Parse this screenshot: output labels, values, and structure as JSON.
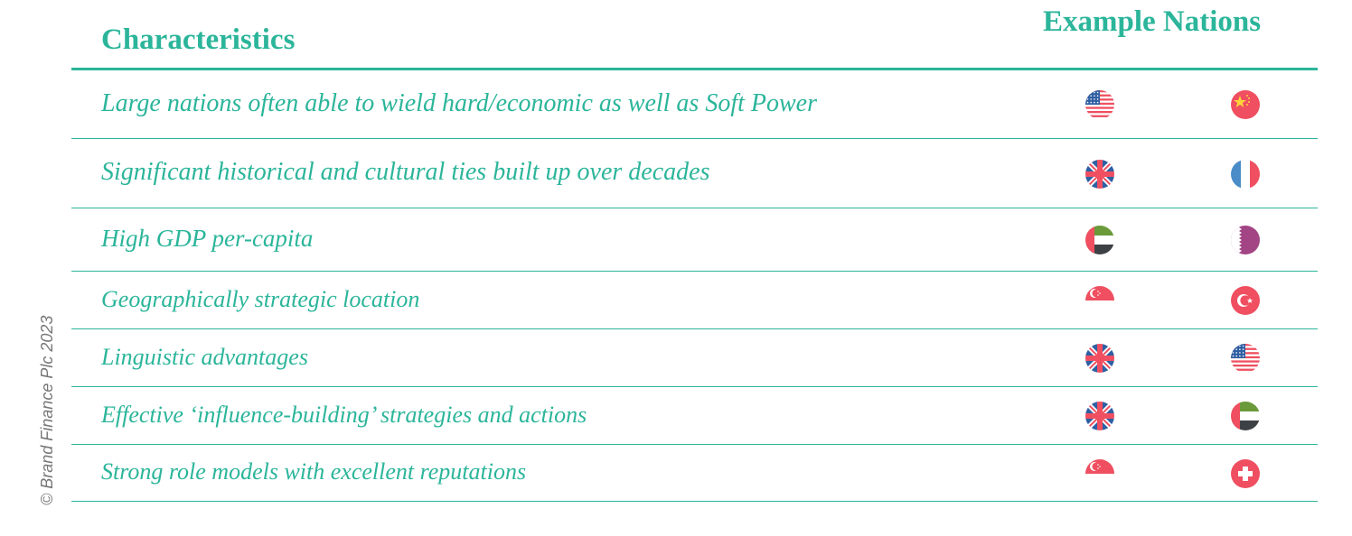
{
  "header": {
    "characteristics": "Characteristics",
    "example_nations": "Example Nations"
  },
  "colors": {
    "accent": "#2bb59a",
    "flag_red": "#ef4f60",
    "flag_blue": "#2f5fa3"
  },
  "rows": [
    {
      "text": "Large nations often able to wield hard/economic as well as Soft Power",
      "flags": [
        "us-flag-icon",
        "china-flag-icon"
      ]
    },
    {
      "text": "Significant historical and cultural ties built up over decades",
      "flags": [
        "uk-flag-icon",
        "france-flag-icon"
      ]
    },
    {
      "text": "High GDP per-capita",
      "flags": [
        "uae-flag-icon",
        "qatar-flag-icon"
      ]
    },
    {
      "text": "Geographically strategic location",
      "flags": [
        "singapore-flag-icon",
        "turkey-flag-icon"
      ]
    },
    {
      "text": "Linguistic advantages",
      "flags": [
        "uk-flag-icon",
        "us-flag-icon"
      ]
    },
    {
      "text": "Effective ‘influence-building’ strategies and actions",
      "flags": [
        "uk-flag-icon",
        "uae-flag-icon"
      ]
    },
    {
      "text": "Strong role models with excellent reputations",
      "flags": [
        "singapore-flag-icon",
        "switzerland-flag-icon"
      ]
    }
  ],
  "copyright": "© Brand Finance Plc 2023"
}
